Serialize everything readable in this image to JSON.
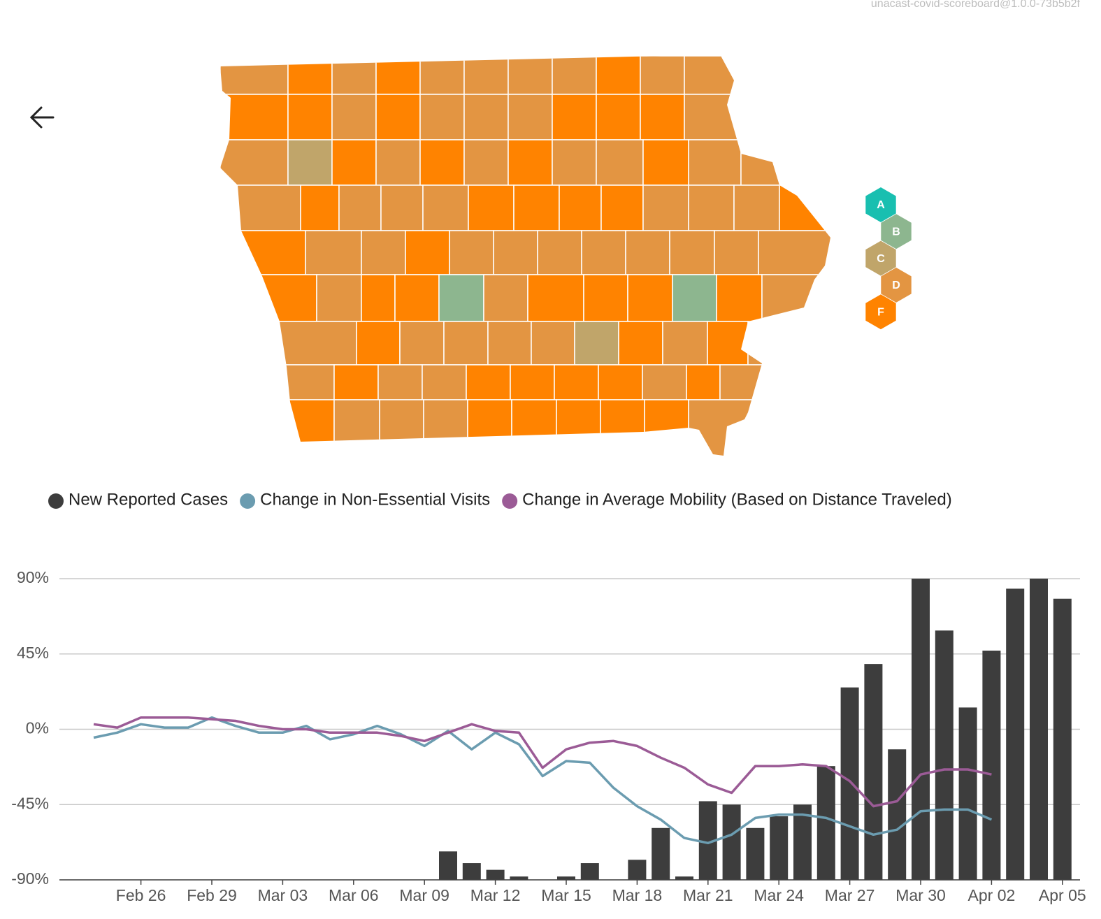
{
  "header": {
    "version": "unacast-covid-scoreboard@1.0.0-73b5b2f"
  },
  "grades": [
    {
      "label": "A",
      "color": "#19bfb0"
    },
    {
      "label": "B",
      "color": "#8db68f"
    },
    {
      "label": "C",
      "color": "#c0a56a"
    },
    {
      "label": "D",
      "color": "#e39542"
    },
    {
      "label": "F",
      "color": "#ff8300"
    }
  ],
  "chart_data": {
    "type": "combo",
    "categories": [
      null,
      null,
      "Feb 26",
      null,
      null,
      "Feb 29",
      null,
      null,
      "Mar 03",
      null,
      null,
      "Mar 06",
      null,
      null,
      "Mar 09",
      null,
      null,
      "Mar 12",
      null,
      null,
      "Mar 15",
      null,
      null,
      "Mar 18",
      null,
      null,
      "Mar 21",
      null,
      null,
      "Mar 24",
      null,
      null,
      "Mar 27",
      null,
      null,
      "Mar 30",
      null,
      null,
      "Apr 02",
      null,
      null,
      "Apr 05"
    ],
    "ylim": [
      -90,
      90
    ],
    "yticks": [
      {
        "value": 90,
        "label": "90%"
      },
      {
        "value": 45,
        "label": "45%"
      },
      {
        "value": 0,
        "label": "0%"
      },
      {
        "value": -45,
        "label": "-45%"
      },
      {
        "value": -90,
        "label": "-90%"
      }
    ],
    "grid": true,
    "legend": "top",
    "series": [
      {
        "name": "New Reported Cases",
        "type": "bar",
        "color": "#3d3d3d",
        "values": [
          null,
          null,
          null,
          null,
          null,
          null,
          null,
          null,
          null,
          null,
          null,
          null,
          null,
          null,
          null,
          -73,
          -80,
          -84,
          -88,
          null,
          -88,
          -80,
          null,
          -78,
          -59,
          -88,
          -43,
          -45,
          -59,
          -52,
          -45,
          -22,
          25,
          39,
          -12,
          90,
          59,
          13,
          47,
          84,
          90,
          78
        ]
      },
      {
        "name": "Change in Non-Essential Visits",
        "type": "line",
        "color": "#6b9cb0",
        "values": [
          -5,
          -2,
          3,
          1,
          1,
          7,
          2,
          -2,
          -2,
          2,
          -6,
          -3,
          2,
          -3,
          -10,
          -1,
          -12,
          -2,
          -9,
          -28,
          -19,
          -20,
          -35,
          -46,
          -54,
          -65,
          -68,
          -63,
          -53,
          -51,
          -51,
          -53,
          -58,
          -63,
          -60,
          -49,
          -48,
          -48,
          -54,
          null,
          null,
          null
        ]
      },
      {
        "name": "Change in Average Mobility (Based on Distance Traveled)",
        "type": "line",
        "color": "#9b5b96",
        "values": [
          3,
          1,
          7,
          7,
          7,
          6,
          5,
          2,
          0,
          0,
          -2,
          -2,
          -2,
          -4,
          -7,
          -2,
          3,
          -1,
          -2,
          -23,
          -12,
          -8,
          -7,
          -10,
          -17,
          -23,
          -33,
          -38,
          -22,
          -22,
          -21,
          -22,
          -31,
          -46,
          -43,
          -27,
          -24,
          -24,
          -27,
          null,
          null,
          null
        ]
      }
    ]
  }
}
